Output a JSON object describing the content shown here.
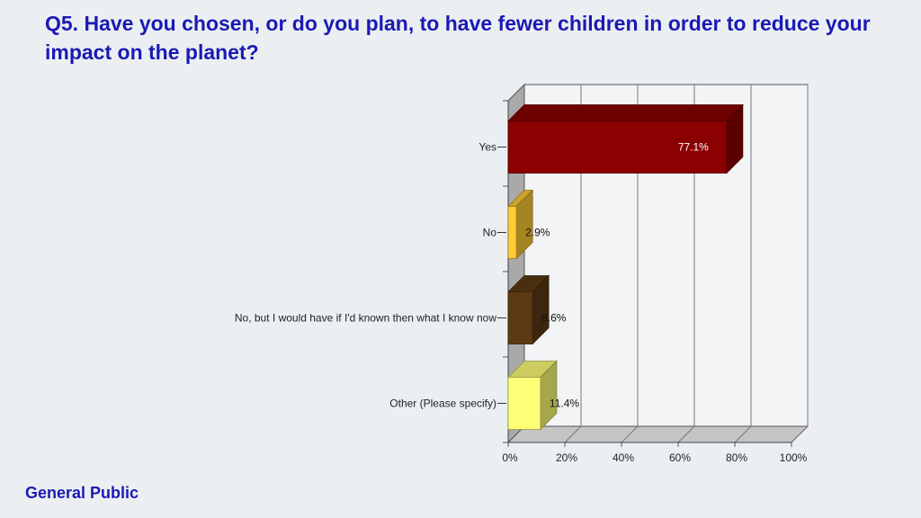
{
  "page": {
    "title": "Q5. Have you chosen, or do you plan, to have fewer children in order to reduce your impact on the planet?",
    "footer": "General Public"
  },
  "chart_data": {
    "type": "bar",
    "orientation": "horizontal",
    "three_d": true,
    "categories": [
      "Yes",
      "No",
      "No, but I would have if I'd known then what I know now",
      "Other (Please specify)"
    ],
    "values": [
      77.1,
      2.9,
      8.6,
      11.4
    ],
    "value_labels": [
      "77.1%",
      "2.9%",
      "8.6%",
      "11.4%"
    ],
    "bar_colors": [
      "#8b0000",
      "#ffcc33",
      "#5c3a14",
      "#ffff77"
    ],
    "xlim": [
      0,
      100
    ],
    "xticks": [
      "0%",
      "20%",
      "40%",
      "60%",
      "80%",
      "100%"
    ],
    "grid": true,
    "xlabel": "",
    "ylabel": ""
  }
}
